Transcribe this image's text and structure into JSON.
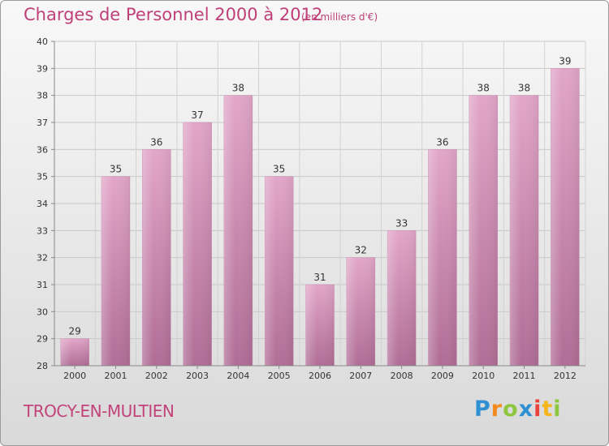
{
  "header": {
    "title": "Charges de Personnel 2000 à 2012",
    "subtitle": "(en milliers d'€)"
  },
  "footer": {
    "place": "TROCY-EN-MULTIEN",
    "logo_letters": [
      "P",
      "r",
      "o",
      "x",
      "i",
      "t",
      "i"
    ],
    "logo_colors": [
      "#2f8fd3",
      "#f28a1d",
      "#8dc63f",
      "#2f8fd3",
      "#e8423b",
      "#f5b51d",
      "#8dc63f"
    ]
  },
  "chart_data": {
    "type": "bar",
    "categories": [
      "2000",
      "2001",
      "2002",
      "2003",
      "2004",
      "2005",
      "2006",
      "2007",
      "2008",
      "2009",
      "2010",
      "2011",
      "2012"
    ],
    "values": [
      29,
      35,
      36,
      37,
      38,
      35,
      31,
      32,
      33,
      36,
      38,
      38,
      39
    ],
    "ylim": [
      28,
      40
    ],
    "yticks": [
      28,
      29,
      30,
      31,
      32,
      33,
      34,
      35,
      36,
      37,
      38,
      39,
      40
    ],
    "grid": true,
    "bar_color": "#d990b8"
  }
}
